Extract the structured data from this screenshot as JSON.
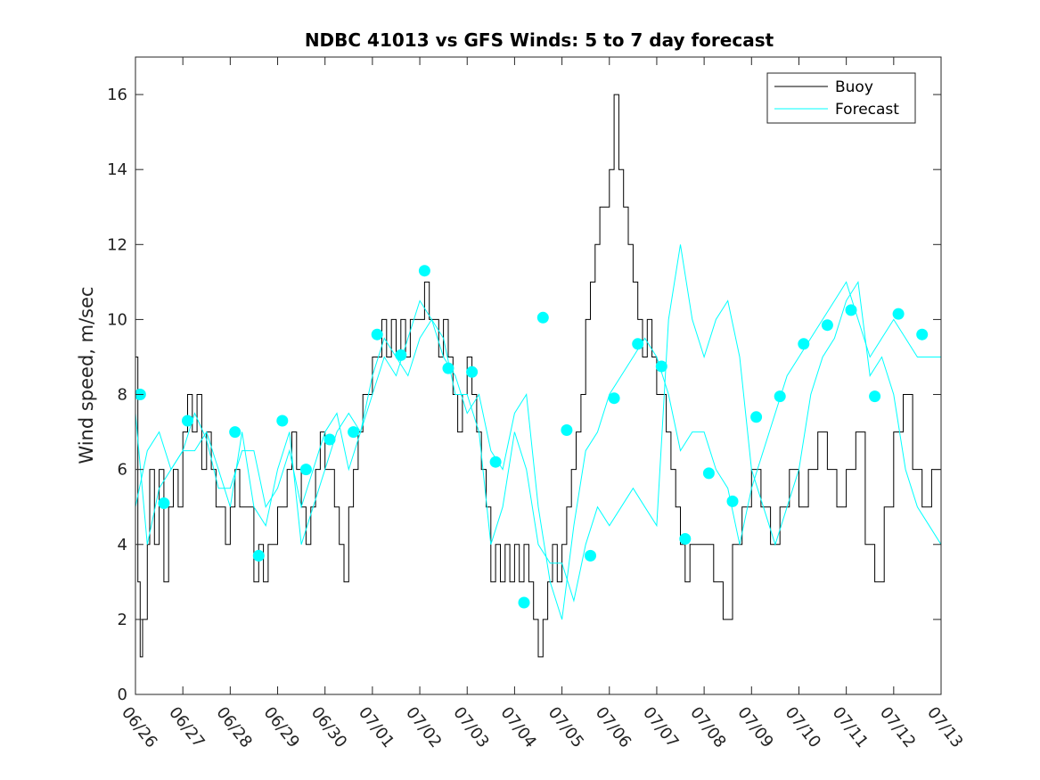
{
  "chart_data": {
    "type": "line",
    "title": "NDBC 41013 vs GFS Winds: 5 to 7 day forecast",
    "xlabel": "",
    "ylabel": "Wind speed, m/sec",
    "xlim": [
      0,
      17
    ],
    "ylim": [
      0,
      17
    ],
    "x_unit": "days since 06/26",
    "x_tick_labels": [
      "06/26",
      "06/27",
      "06/28",
      "06/29",
      "06/30",
      "07/01",
      "07/02",
      "07/03",
      "07/04",
      "07/05",
      "07/06",
      "07/07",
      "07/08",
      "07/09",
      "07/10",
      "07/11",
      "07/12",
      "07/13"
    ],
    "y_ticks": [
      0,
      2,
      4,
      6,
      8,
      10,
      12,
      14,
      16
    ],
    "grid": false,
    "legend": {
      "position": "top-right",
      "entries": [
        "Buoy",
        "Forecast"
      ]
    },
    "colors": {
      "buoy": "#000000",
      "forecast": "#00ffff",
      "axes": "#262626"
    },
    "series": [
      {
        "name": "Buoy",
        "style": "step-line",
        "points": [
          [
            0,
            9
          ],
          [
            0.05,
            3
          ],
          [
            0.1,
            1
          ],
          [
            0.15,
            2
          ],
          [
            0.25,
            4
          ],
          [
            0.3,
            6
          ],
          [
            0.4,
            4
          ],
          [
            0.5,
            6
          ],
          [
            0.6,
            3
          ],
          [
            0.7,
            5
          ],
          [
            0.8,
            6
          ],
          [
            0.9,
            5
          ],
          [
            1.0,
            7
          ],
          [
            1.1,
            8
          ],
          [
            1.2,
            7
          ],
          [
            1.3,
            8
          ],
          [
            1.4,
            6
          ],
          [
            1.5,
            7
          ],
          [
            1.6,
            6
          ],
          [
            1.7,
            5
          ],
          [
            1.8,
            5
          ],
          [
            1.9,
            4
          ],
          [
            2.0,
            5
          ],
          [
            2.1,
            6
          ],
          [
            2.2,
            5
          ],
          [
            2.4,
            5
          ],
          [
            2.5,
            3
          ],
          [
            2.6,
            4
          ],
          [
            2.7,
            3
          ],
          [
            2.8,
            4
          ],
          [
            3.0,
            5
          ],
          [
            3.1,
            5
          ],
          [
            3.2,
            6
          ],
          [
            3.3,
            7
          ],
          [
            3.4,
            6
          ],
          [
            3.5,
            5
          ],
          [
            3.6,
            4
          ],
          [
            3.7,
            5
          ],
          [
            3.8,
            6
          ],
          [
            3.9,
            7
          ],
          [
            4.0,
            6
          ],
          [
            4.2,
            5
          ],
          [
            4.3,
            4
          ],
          [
            4.4,
            3
          ],
          [
            4.5,
            5
          ],
          [
            4.6,
            6
          ],
          [
            4.7,
            7
          ],
          [
            4.8,
            8
          ],
          [
            5.0,
            9
          ],
          [
            5.1,
            9
          ],
          [
            5.2,
            10
          ],
          [
            5.3,
            9
          ],
          [
            5.4,
            10
          ],
          [
            5.5,
            9
          ],
          [
            5.6,
            10
          ],
          [
            5.7,
            9
          ],
          [
            5.8,
            10
          ],
          [
            5.9,
            10
          ],
          [
            6.0,
            10
          ],
          [
            6.1,
            11
          ],
          [
            6.2,
            10
          ],
          [
            6.3,
            10
          ],
          [
            6.4,
            9
          ],
          [
            6.5,
            10
          ],
          [
            6.6,
            9
          ],
          [
            6.7,
            8
          ],
          [
            6.8,
            7
          ],
          [
            6.9,
            8
          ],
          [
            7.0,
            9
          ],
          [
            7.1,
            8
          ],
          [
            7.2,
            7
          ],
          [
            7.3,
            6
          ],
          [
            7.4,
            5
          ],
          [
            7.5,
            3
          ],
          [
            7.6,
            4
          ],
          [
            7.7,
            3
          ],
          [
            7.8,
            4
          ],
          [
            7.9,
            3
          ],
          [
            8.0,
            4
          ],
          [
            8.1,
            3
          ],
          [
            8.2,
            4
          ],
          [
            8.3,
            3
          ],
          [
            8.4,
            2
          ],
          [
            8.5,
            1
          ],
          [
            8.6,
            2
          ],
          [
            8.7,
            3
          ],
          [
            8.8,
            4
          ],
          [
            8.9,
            3
          ],
          [
            9.0,
            4
          ],
          [
            9.1,
            5
          ],
          [
            9.2,
            6
          ],
          [
            9.3,
            7
          ],
          [
            9.4,
            8
          ],
          [
            9.5,
            10
          ],
          [
            9.6,
            11
          ],
          [
            9.7,
            12
          ],
          [
            9.8,
            13
          ],
          [
            9.9,
            13
          ],
          [
            10.0,
            14
          ],
          [
            10.1,
            16
          ],
          [
            10.2,
            14
          ],
          [
            10.3,
            13
          ],
          [
            10.4,
            12
          ],
          [
            10.5,
            11
          ],
          [
            10.6,
            10
          ],
          [
            10.7,
            9
          ],
          [
            10.8,
            10
          ],
          [
            10.9,
            9
          ],
          [
            11.0,
            8
          ],
          [
            11.1,
            8
          ],
          [
            11.2,
            7
          ],
          [
            11.3,
            6
          ],
          [
            11.4,
            5
          ],
          [
            11.5,
            4
          ],
          [
            11.6,
            3
          ],
          [
            11.7,
            4
          ],
          [
            11.8,
            4
          ],
          [
            11.9,
            4
          ],
          [
            12.0,
            4
          ],
          [
            12.2,
            3
          ],
          [
            12.4,
            2
          ],
          [
            12.6,
            4
          ],
          [
            12.8,
            5
          ],
          [
            13.0,
            6
          ],
          [
            13.2,
            5
          ],
          [
            13.4,
            4
          ],
          [
            13.6,
            5
          ],
          [
            13.8,
            6
          ],
          [
            14.0,
            5
          ],
          [
            14.2,
            6
          ],
          [
            14.4,
            7
          ],
          [
            14.6,
            6
          ],
          [
            14.8,
            5
          ],
          [
            15.0,
            6
          ],
          [
            15.2,
            7
          ],
          [
            15.4,
            4
          ],
          [
            15.6,
            3
          ],
          [
            15.8,
            5
          ],
          [
            16.0,
            7
          ],
          [
            16.2,
            8
          ],
          [
            16.4,
            6
          ],
          [
            16.6,
            5
          ],
          [
            16.8,
            6
          ],
          [
            17.0,
            6
          ]
        ]
      },
      {
        "name": "Forecast",
        "style": "line",
        "points": [
          [
            0,
            5
          ],
          [
            0.25,
            6.5
          ],
          [
            0.5,
            7
          ],
          [
            0.75,
            6
          ],
          [
            1.0,
            6.5
          ],
          [
            1.25,
            7.5
          ],
          [
            1.5,
            6.8
          ],
          [
            1.75,
            5.5
          ],
          [
            2.0,
            5.5
          ],
          [
            2.25,
            6.5
          ],
          [
            2.5,
            6.5
          ],
          [
            2.75,
            5
          ],
          [
            3.0,
            5.5
          ],
          [
            3.25,
            6.5
          ],
          [
            3.5,
            5
          ],
          [
            3.75,
            6
          ],
          [
            4.0,
            7
          ],
          [
            4.25,
            7.5
          ],
          [
            4.5,
            6
          ],
          [
            4.75,
            7
          ],
          [
            5.0,
            8
          ],
          [
            5.25,
            9
          ],
          [
            5.5,
            8.5
          ],
          [
            5.75,
            9.5
          ],
          [
            6.0,
            10.5
          ],
          [
            6.25,
            10
          ],
          [
            6.5,
            9
          ],
          [
            6.75,
            8.5
          ],
          [
            7.0,
            7.5
          ],
          [
            7.25,
            8
          ],
          [
            7.5,
            6.5
          ],
          [
            7.75,
            6
          ],
          [
            8.0,
            7.5
          ],
          [
            8.25,
            8
          ],
          [
            8.5,
            5
          ],
          [
            8.75,
            3
          ],
          [
            9.0,
            2
          ],
          [
            9.25,
            4.5
          ],
          [
            9.5,
            6.5
          ],
          [
            9.75,
            7
          ],
          [
            10.0,
            8
          ],
          [
            10.25,
            8.5
          ],
          [
            10.5,
            9
          ],
          [
            10.75,
            9.5
          ],
          [
            11.0,
            9
          ],
          [
            11.25,
            8
          ],
          [
            11.5,
            6.5
          ],
          [
            11.75,
            7
          ],
          [
            12.0,
            7
          ],
          [
            12.25,
            6
          ],
          [
            12.5,
            5.5
          ],
          [
            12.75,
            4
          ],
          [
            13.0,
            5.5
          ],
          [
            13.25,
            6.5
          ],
          [
            13.5,
            7.5
          ],
          [
            13.75,
            8.5
          ],
          [
            14.0,
            9
          ],
          [
            14.25,
            9.5
          ],
          [
            14.5,
            10
          ],
          [
            14.75,
            10.5
          ],
          [
            15.0,
            11
          ],
          [
            15.25,
            10
          ],
          [
            15.5,
            9
          ],
          [
            15.75,
            9.5
          ],
          [
            16.0,
            10
          ],
          [
            16.25,
            9.5
          ],
          [
            16.5,
            9
          ],
          [
            16.75,
            9
          ],
          [
            17.0,
            9
          ]
        ]
      },
      {
        "name": "Forecast",
        "style": "line",
        "points": [
          [
            0,
            7.5
          ],
          [
            0.25,
            4
          ],
          [
            0.5,
            5.5
          ],
          [
            0.75,
            6
          ],
          [
            1.0,
            6.5
          ],
          [
            1.25,
            6.5
          ],
          [
            1.5,
            7
          ],
          [
            1.75,
            6
          ],
          [
            2.0,
            5
          ],
          [
            2.25,
            7
          ],
          [
            2.5,
            5
          ],
          [
            2.75,
            4.5
          ],
          [
            3.0,
            6
          ],
          [
            3.25,
            7
          ],
          [
            3.5,
            4
          ],
          [
            3.75,
            5
          ],
          [
            4.0,
            6
          ],
          [
            4.25,
            7
          ],
          [
            4.5,
            7.5
          ],
          [
            4.75,
            7
          ],
          [
            5.0,
            8.5
          ],
          [
            5.25,
            9.5
          ],
          [
            5.5,
            9
          ],
          [
            5.75,
            8.5
          ],
          [
            6.0,
            9.5
          ],
          [
            6.25,
            10
          ],
          [
            6.5,
            9.5
          ],
          [
            6.75,
            8
          ],
          [
            7.0,
            8
          ],
          [
            7.25,
            7
          ],
          [
            7.5,
            4
          ],
          [
            7.75,
            5
          ],
          [
            8.0,
            7
          ],
          [
            8.25,
            6
          ],
          [
            8.5,
            4
          ],
          [
            8.75,
            3.5
          ],
          [
            9.0,
            3.5
          ],
          [
            9.25,
            2.5
          ],
          [
            9.5,
            4
          ],
          [
            9.75,
            5
          ],
          [
            10.0,
            4.5
          ],
          [
            10.25,
            5
          ],
          [
            10.5,
            5.5
          ],
          [
            10.75,
            5
          ],
          [
            11.0,
            4.5
          ],
          [
            11.25,
            10
          ],
          [
            11.5,
            12
          ],
          [
            11.75,
            10
          ],
          [
            12.0,
            9
          ],
          [
            12.25,
            10
          ],
          [
            12.5,
            10.5
          ],
          [
            12.75,
            9
          ],
          [
            13.0,
            6
          ],
          [
            13.25,
            5
          ],
          [
            13.5,
            4
          ],
          [
            13.75,
            5
          ],
          [
            14.0,
            6
          ],
          [
            14.25,
            8
          ],
          [
            14.5,
            9
          ],
          [
            14.75,
            9.5
          ],
          [
            15.0,
            10.5
          ],
          [
            15.25,
            11
          ],
          [
            15.5,
            8.5
          ],
          [
            15.75,
            9
          ],
          [
            16.0,
            8
          ],
          [
            16.25,
            6
          ],
          [
            16.5,
            5
          ],
          [
            16.75,
            4.5
          ],
          [
            17.0,
            4
          ]
        ]
      }
    ],
    "forecast_markers": [
      [
        0.1,
        8
      ],
      [
        0.6,
        5.1
      ],
      [
        1.1,
        7.3
      ],
      [
        2.1,
        7
      ],
      [
        2.6,
        3.7
      ],
      [
        3.1,
        7.3
      ],
      [
        3.6,
        6
      ],
      [
        4.1,
        6.8
      ],
      [
        4.6,
        7
      ],
      [
        5.1,
        9.6
      ],
      [
        5.6,
        9.05
      ],
      [
        6.1,
        11.3
      ],
      [
        6.6,
        8.7
      ],
      [
        7.1,
        8.6
      ],
      [
        7.6,
        6.2
      ],
      [
        8.6,
        10.05
      ],
      [
        8.2,
        2.45
      ],
      [
        9.1,
        7.05
      ],
      [
        9.6,
        3.7
      ],
      [
        10.1,
        7.9
      ],
      [
        10.6,
        9.35
      ],
      [
        11.1,
        8.75
      ],
      [
        11.6,
        4.15
      ],
      [
        12.1,
        5.9
      ],
      [
        12.6,
        5.15
      ],
      [
        13.1,
        7.4
      ],
      [
        13.6,
        7.95
      ],
      [
        14.1,
        9.35
      ],
      [
        14.6,
        9.85
      ],
      [
        15.1,
        10.25
      ],
      [
        15.6,
        7.95
      ],
      [
        16.1,
        10.15
      ],
      [
        16.6,
        9.6
      ]
    ]
  }
}
